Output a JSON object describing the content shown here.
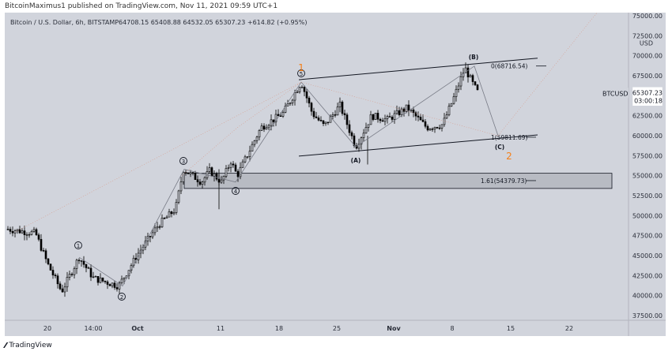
{
  "header": {
    "publish_line": "BitcoinMaximus1 published on TradingView.com, Nov 11, 2021 09:59 UTC+1"
  },
  "footer": {
    "brand": "TradingView"
  },
  "chart_data": {
    "type": "candlestick",
    "title": "Bitcoin / U.S. Dollar, 6h, BITSTAMP",
    "ohlc": {
      "o": "64708.15",
      "h": "65408.88",
      "l": "64532.05",
      "c": "65307.23",
      "change": "+614.82 (+0.95%)"
    },
    "currency": "USD",
    "symbol": "BTCUSD",
    "last_price": "65307.23",
    "countdown": "03:00:18",
    "y_ticks": [
      "75000.00",
      "72500.00",
      "70000.00",
      "67500.00",
      "65000.00",
      "62500.00",
      "60000.00",
      "57500.00",
      "55000.00",
      "52500.00",
      "50000.00",
      "47500.00",
      "45000.00",
      "42500.00",
      "40000.00",
      "37500.00"
    ],
    "ylim": [
      36700,
      75400
    ],
    "x_ticks": [
      "20",
      "14:00",
      "Oct",
      "11",
      "18",
      "25",
      "Nov",
      "8",
      "15",
      "22"
    ],
    "fib_labels": [
      {
        "text": "0(68716.54)",
        "value": 68716.54
      },
      {
        "text": "1(59811.69)",
        "value": 59811.69
      },
      {
        "text": "1.61(54379.73)",
        "value": 54379.73
      }
    ],
    "box_range": [
      53400,
      55300
    ],
    "wave_labels": {
      "circled": [
        "1",
        "2",
        "3",
        "4",
        "5"
      ],
      "corrective": [
        "(A)",
        "(B)",
        "(C)"
      ],
      "orange": [
        "1",
        "2"
      ]
    },
    "colors": {
      "bg": "#d1d4dc",
      "candle": "#000000",
      "orange": "#f57f17",
      "box": "#b8bbc3"
    }
  }
}
